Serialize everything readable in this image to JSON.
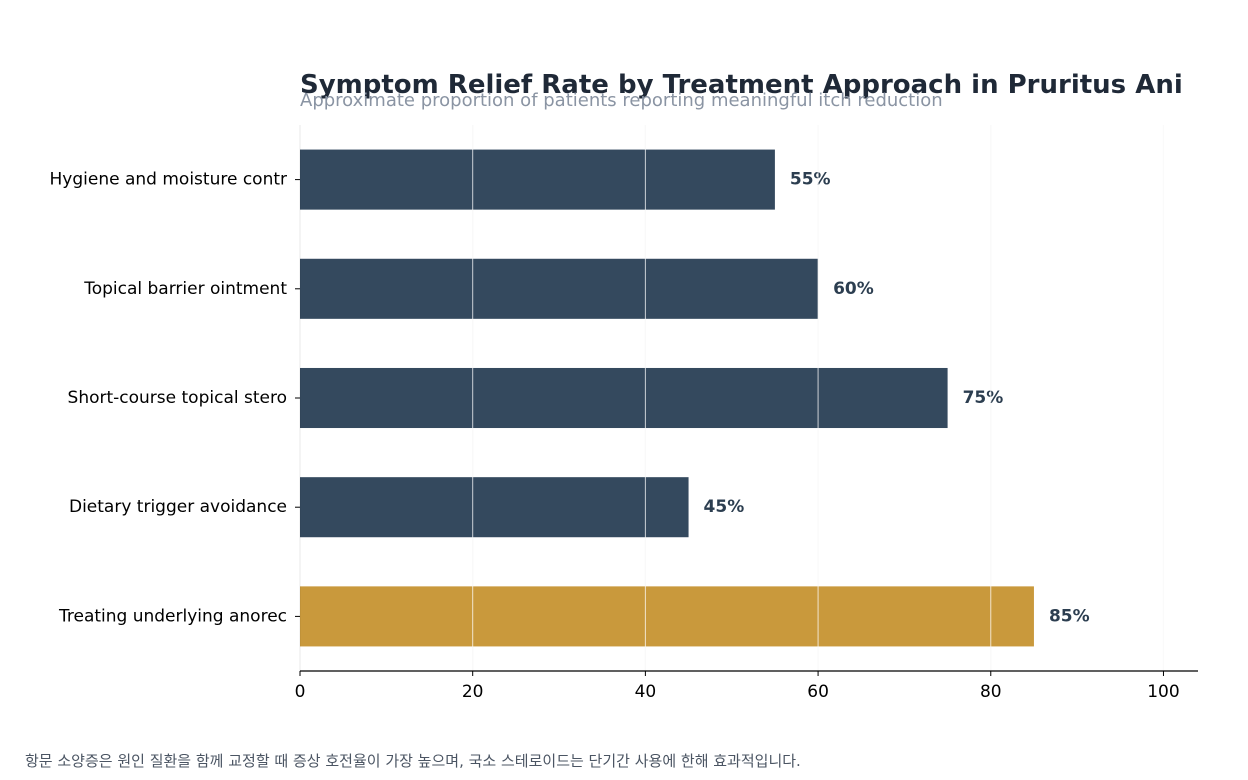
{
  "chart_data": {
    "type": "bar",
    "orientation": "horizontal",
    "title": "Symptom Relief Rate by Treatment Approach in Pruritus Ani",
    "subtitle": "Approximate proportion of patients reporting meaningful itch reduction",
    "categories": [
      "Hygiene and moisture contr",
      "Topical barrier ointment",
      "Short-course topical stero",
      "Dietary trigger avoidance",
      "Treating underlying anorec"
    ],
    "values": [
      55,
      60,
      75,
      45,
      85
    ],
    "value_labels": [
      "55%",
      "60%",
      "75%",
      "45%",
      "85%"
    ],
    "highlight_index": 4,
    "xlim": [
      0,
      104
    ],
    "xticks": [
      0,
      20,
      40,
      60,
      80,
      100
    ],
    "xlabel": "",
    "ylabel": "",
    "grid": "vertical",
    "legend": "none",
    "colors": {
      "bar": "#34495e",
      "highlight": "#c9993c",
      "label": "#2c3e50",
      "grid": "#ebebeb"
    }
  },
  "footnote": "항문 소양증은 원인 질환을 함께 교정할 때 증상 호전율이 가장 높으며, 국소 스테로이드는 단기간 사용에 한해 효과적입니다."
}
